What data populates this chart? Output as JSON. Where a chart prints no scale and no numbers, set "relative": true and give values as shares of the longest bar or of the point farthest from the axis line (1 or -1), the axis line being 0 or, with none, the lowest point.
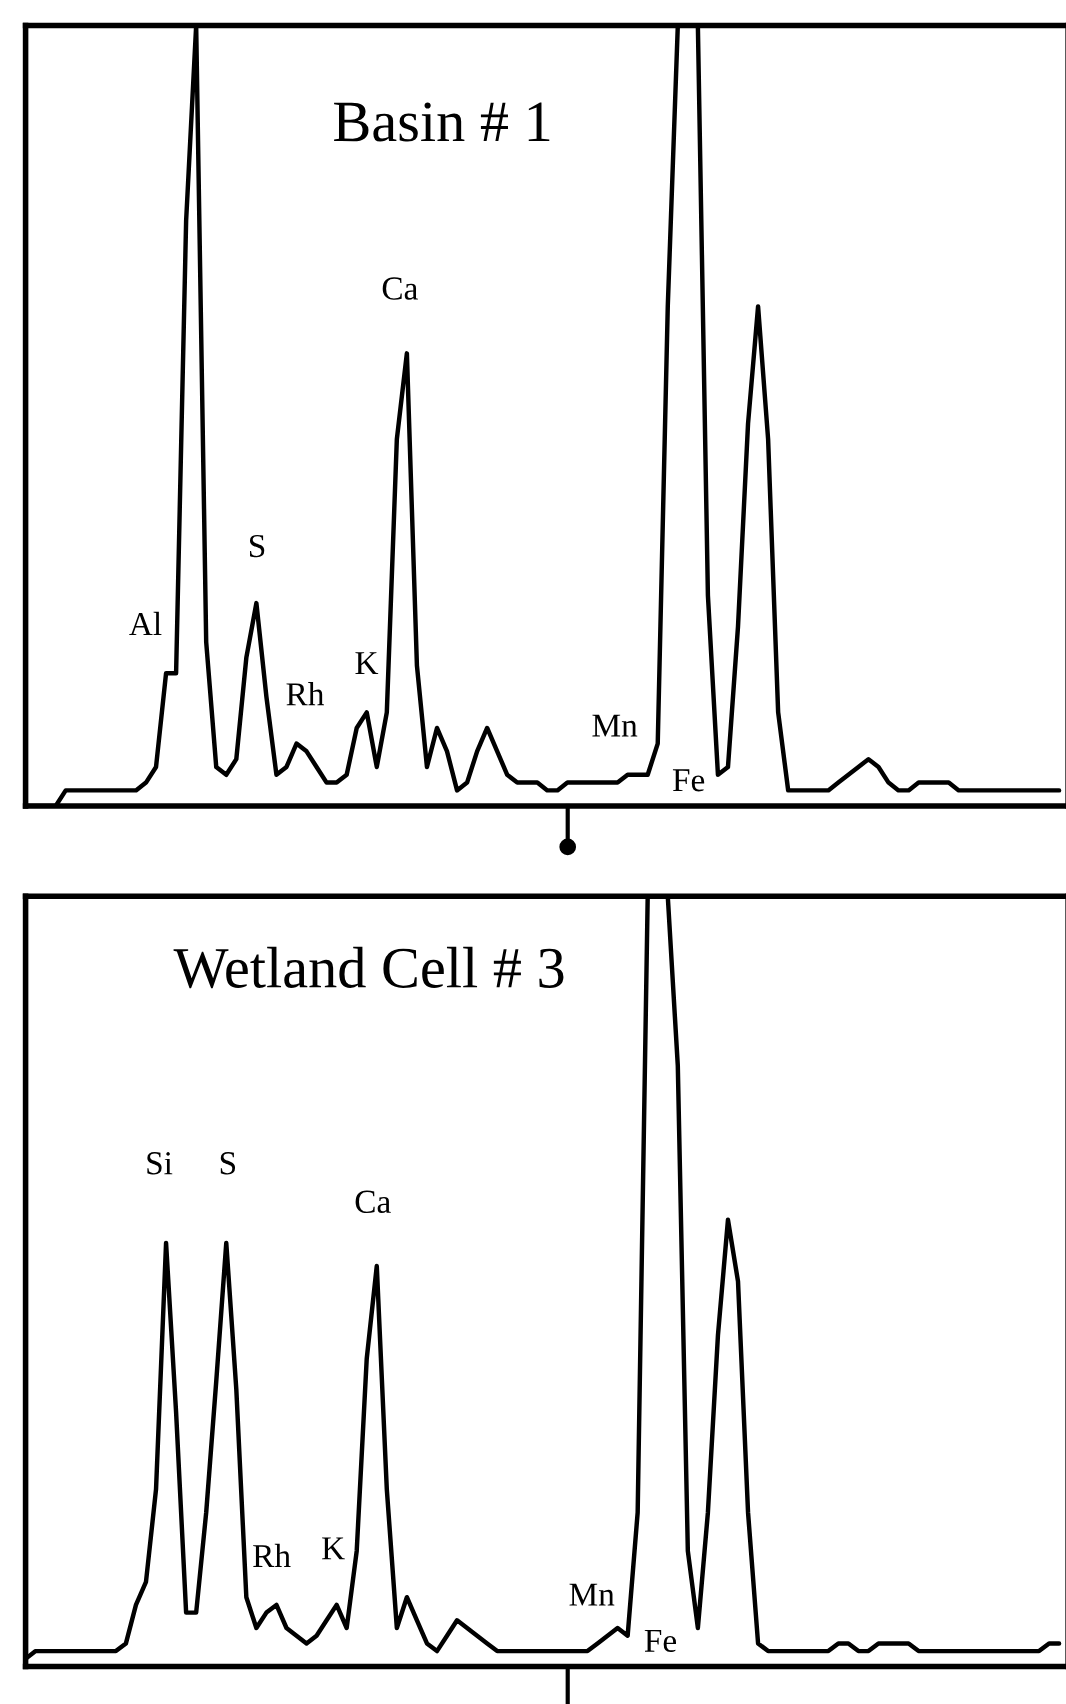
{
  "chart_data": [
    {
      "type": "line",
      "title": "Basin # 1",
      "relative": true,
      "tick_labels": false,
      "categories": [
        null,
        null,
        null,
        null,
        null,
        null,
        null,
        null,
        null,
        null,
        null,
        null,
        null,
        null,
        null,
        null,
        null,
        null,
        null,
        null,
        null,
        null,
        null,
        null,
        null,
        null,
        null,
        null,
        null,
        null,
        null,
        null,
        null,
        null,
        null,
        null,
        null,
        null,
        null,
        null,
        null,
        null,
        null,
        null,
        null,
        null,
        null,
        null,
        null,
        null,
        null,
        null,
        null,
        null,
        null,
        null,
        null,
        null,
        null,
        null,
        null,
        null,
        null,
        null,
        null,
        null,
        null,
        null,
        null,
        null,
        null,
        null,
        null,
        null,
        null,
        null,
        null,
        null,
        null,
        null,
        null,
        null,
        null,
        null,
        null,
        null,
        null,
        null,
        null,
        null,
        null,
        null,
        null,
        null,
        null,
        null,
        null,
        null,
        null,
        null,
        null,
        null,
        null,
        null
      ],
      "series": [
        {
          "color": "#000000",
          "values": [
            0.0,
            0.0,
            0.0,
            0.0,
            0.02,
            0.02,
            0.02,
            0.02,
            0.02,
            0.02,
            0.02,
            0.02,
            0.03,
            0.05,
            0.17,
            0.17,
            0.75,
            1.0,
            0.21,
            0.05,
            0.04,
            0.06,
            0.19,
            0.26,
            0.14,
            0.04,
            0.05,
            0.08,
            0.07,
            0.05,
            0.03,
            0.03,
            0.04,
            0.1,
            0.12,
            0.05,
            0.12,
            0.47,
            0.58,
            0.18,
            0.05,
            0.1,
            0.07,
            0.02,
            0.03,
            0.07,
            0.1,
            0.07,
            0.04,
            0.03,
            0.03,
            0.03,
            0.02,
            0.02,
            0.03,
            0.03,
            0.03,
            0.03,
            0.03,
            0.03,
            0.04,
            0.04,
            0.04,
            0.08,
            0.64,
            1.0,
            1.0,
            1.0,
            0.27,
            0.04,
            0.05,
            0.23,
            0.49,
            0.64,
            0.47,
            0.12,
            0.02,
            0.02,
            0.02,
            0.02,
            0.02,
            0.03,
            0.04,
            0.05,
            0.06,
            0.05,
            0.03,
            0.02,
            0.02,
            0.03,
            0.03,
            0.03,
            0.03,
            0.02,
            0.02,
            0.02,
            0.02,
            0.02,
            0.02,
            0.02,
            0.02,
            0.02,
            0.02,
            0.02
          ]
        }
      ],
      "annotations": [
        "Al",
        "S",
        "Rh",
        "K",
        "Ca",
        "Mn",
        "Fe"
      ]
    },
    {
      "type": "line",
      "title": "Wetland Cell # 3",
      "relative": true,
      "tick_labels": false,
      "categories": [
        null,
        null,
        null,
        null,
        null,
        null,
        null,
        null,
        null,
        null,
        null,
        null,
        null,
        null,
        null,
        null,
        null,
        null,
        null,
        null,
        null,
        null,
        null,
        null,
        null,
        null,
        null,
        null,
        null,
        null,
        null,
        null,
        null,
        null,
        null,
        null,
        null,
        null,
        null,
        null,
        null,
        null,
        null,
        null,
        null,
        null,
        null,
        null,
        null,
        null,
        null,
        null,
        null,
        null,
        null,
        null,
        null,
        null,
        null,
        null,
        null,
        null,
        null,
        null,
        null,
        null,
        null,
        null,
        null,
        null,
        null,
        null,
        null,
        null,
        null,
        null,
        null,
        null,
        null,
        null,
        null,
        null,
        null,
        null,
        null,
        null,
        null,
        null,
        null,
        null,
        null,
        null,
        null,
        null,
        null,
        null,
        null,
        null,
        null,
        null,
        null,
        null,
        null,
        null
      ],
      "series": [
        {
          "color": "#000000",
          "values": [
            0.01,
            0.02,
            0.02,
            0.02,
            0.02,
            0.02,
            0.02,
            0.02,
            0.02,
            0.02,
            0.03,
            0.08,
            0.11,
            0.23,
            0.55,
            0.33,
            0.07,
            0.07,
            0.2,
            0.37,
            0.55,
            0.36,
            0.09,
            0.05,
            0.07,
            0.08,
            0.05,
            0.04,
            0.03,
            0.04,
            0.06,
            0.08,
            0.05,
            0.15,
            0.4,
            0.52,
            0.23,
            0.05,
            0.09,
            0.06,
            0.03,
            0.02,
            0.04,
            0.06,
            0.05,
            0.04,
            0.03,
            0.02,
            0.02,
            0.02,
            0.02,
            0.02,
            0.02,
            0.02,
            0.02,
            0.02,
            0.02,
            0.03,
            0.04,
            0.05,
            0.04,
            0.2,
            1.0,
            1.0,
            1.0,
            0.78,
            0.15,
            0.05,
            0.2,
            0.43,
            0.58,
            0.5,
            0.2,
            0.03,
            0.02,
            0.02,
            0.02,
            0.02,
            0.02,
            0.02,
            0.02,
            0.03,
            0.03,
            0.02,
            0.02,
            0.03,
            0.03,
            0.03,
            0.03,
            0.02,
            0.02,
            0.02,
            0.02,
            0.02,
            0.02,
            0.02,
            0.02,
            0.02,
            0.02,
            0.02,
            0.02,
            0.02,
            0.03,
            0.03
          ]
        }
      ],
      "annotations": [
        "Si",
        "S",
        "Rh",
        "K",
        "Ca",
        "Mn",
        "Fe"
      ]
    }
  ]
}
